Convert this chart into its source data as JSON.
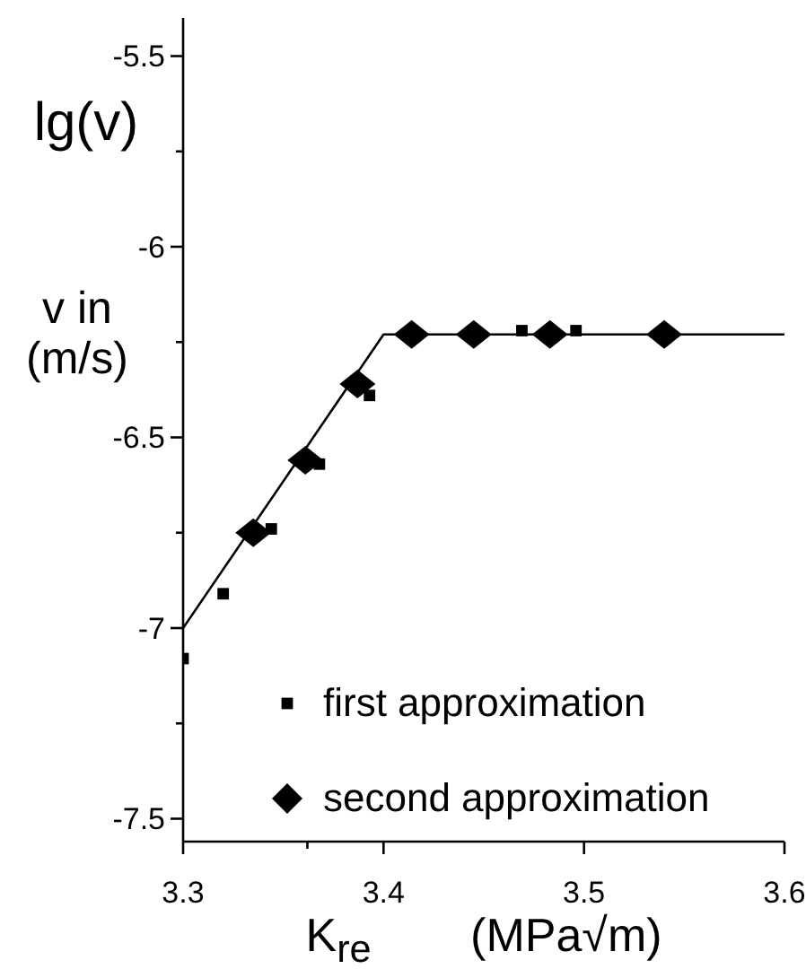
{
  "chart_data": {
    "type": "scatter",
    "xlabel": "K$_{re}$ (MPa√m)",
    "ylabel": "lg(v)",
    "annotations": [
      "v in (m/s)"
    ],
    "xlim": [
      3.3,
      3.6
    ],
    "ylim": [
      -7.56,
      -5.4
    ],
    "xticks": [
      3.3,
      {
        "value": 3.362,
        "label": null
      },
      3.4,
      3.5,
      3.6
    ],
    "yticks": [
      -7.5,
      {
        "value": -7.25,
        "label": null
      },
      -7,
      {
        "value": -6.75,
        "label": null
      },
      -6.5,
      {
        "value": -6.25,
        "label": null
      },
      -6,
      {
        "value": -5.75,
        "label": null
      },
      -5.5
    ],
    "legend": "bottom",
    "series": [
      {
        "name": "first approximation",
        "color": "#000000",
        "marker": "square",
        "x": [
          3.3,
          3.32,
          3.344,
          3.368,
          3.393,
          3.469,
          3.496
        ],
        "values": [
          -7.08,
          -6.91,
          -6.74,
          -6.57,
          -6.39,
          -6.22,
          -6.22
        ]
      },
      {
        "name": "second approximation",
        "color": "#000000",
        "marker": "diamond",
        "x": [
          3.335,
          3.361,
          3.387,
          3.414,
          3.445,
          3.483,
          3.54
        ],
        "values": [
          -6.75,
          -6.56,
          -6.36,
          -6.23,
          -6.23,
          -6.23,
          -6.23
        ]
      },
      {
        "type": "line",
        "color": "#000000",
        "marker": "none",
        "line_style": "solid",
        "x": [
          3.3,
          3.4,
          3.6
        ],
        "values": [
          -7,
          -6.23,
          -6.23
        ]
      }
    ]
  }
}
